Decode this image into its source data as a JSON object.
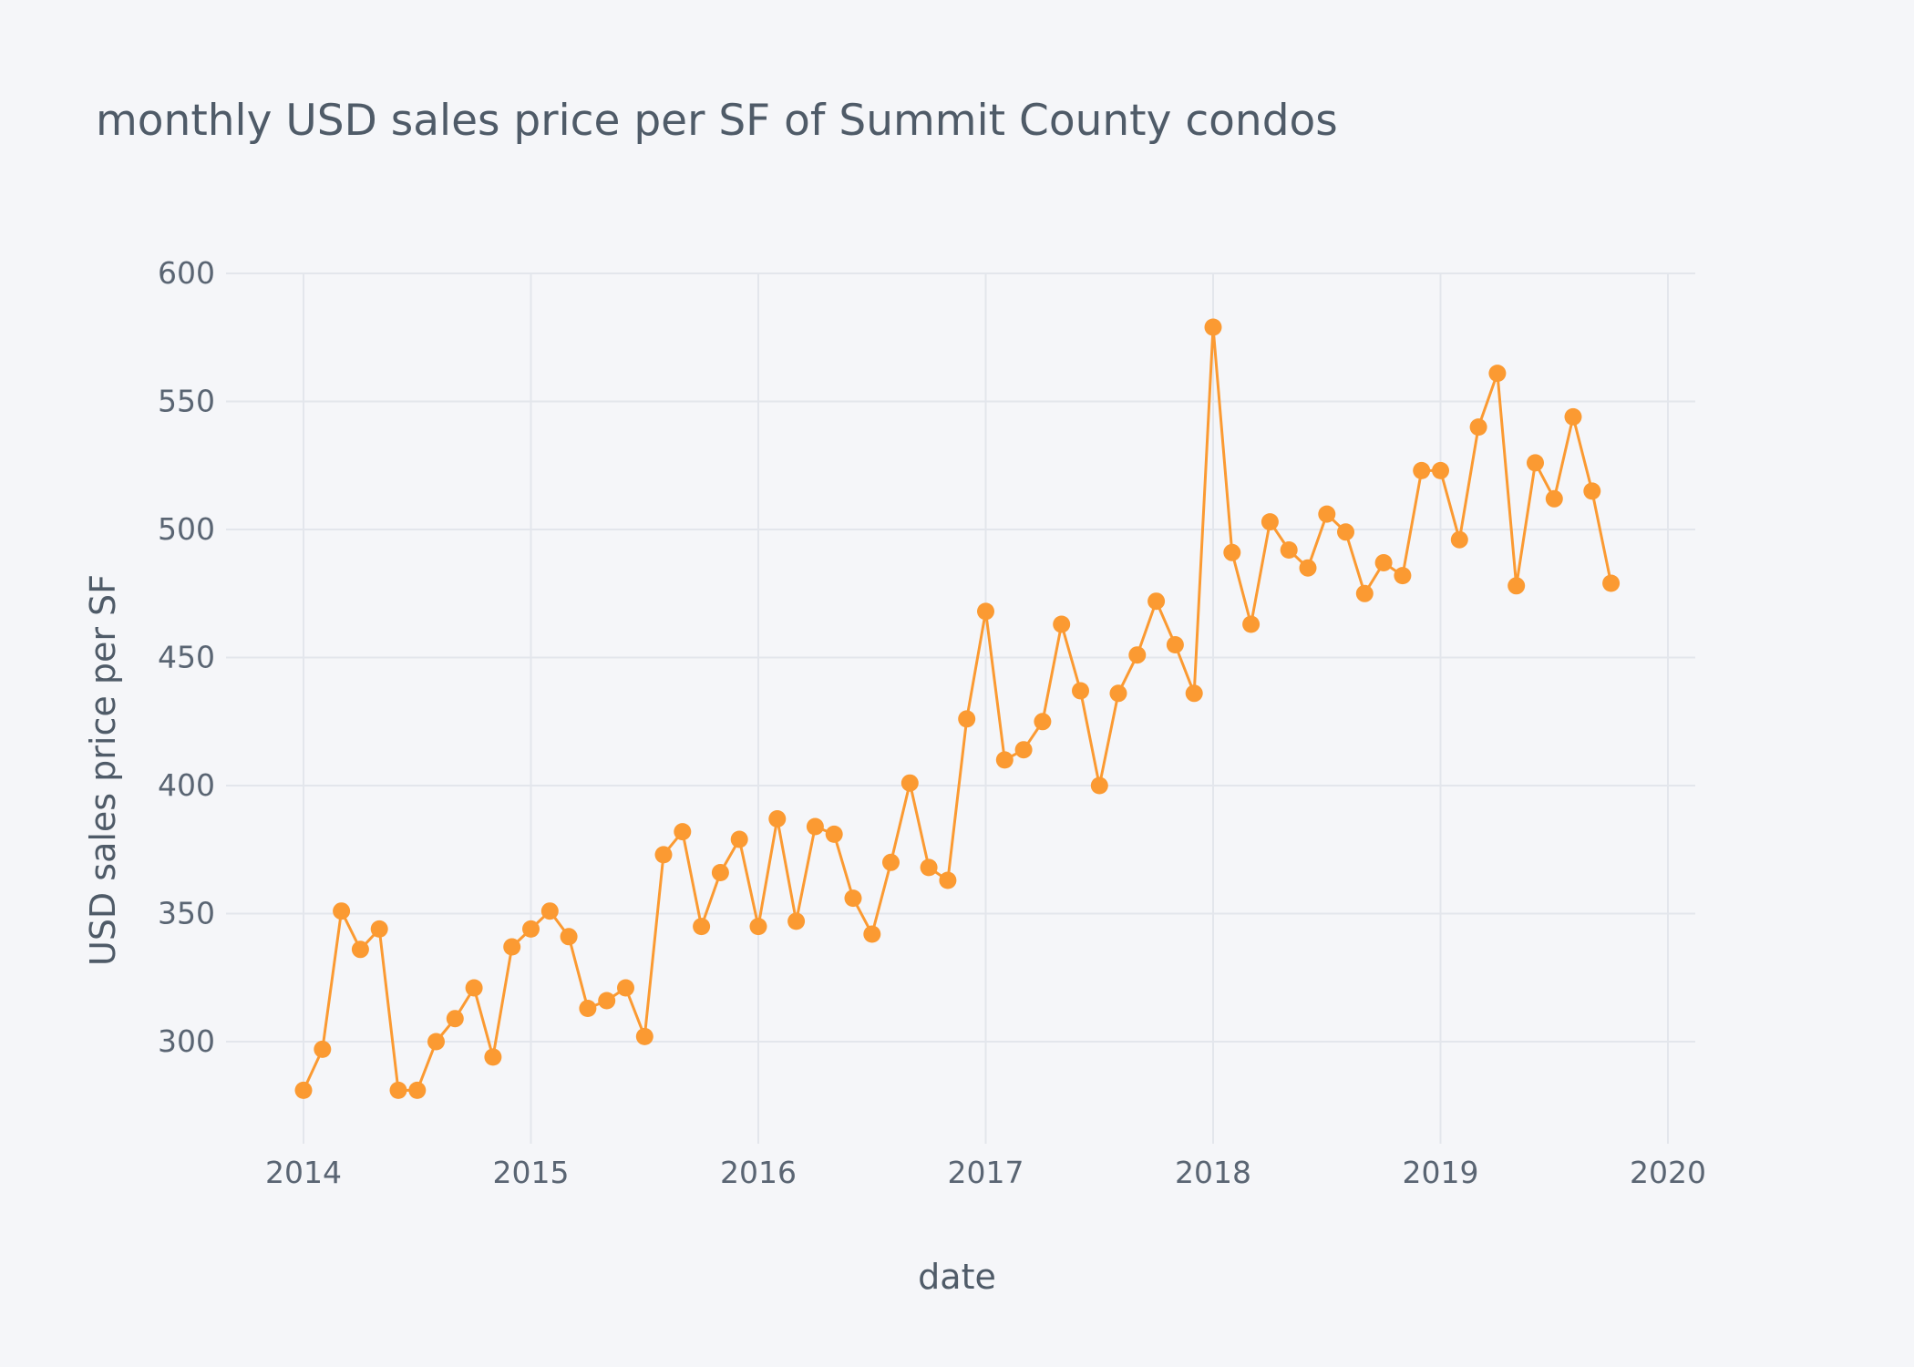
{
  "chart_data": {
    "type": "line",
    "title": "monthly USD sales price per SF of Summit County condos",
    "xlabel": "date",
    "ylabel": "USD sales price per SF",
    "x_ticks": [
      "2014",
      "2015",
      "2016",
      "2017",
      "2018",
      "2019",
      "2020"
    ],
    "y_ticks": [
      "300",
      "350",
      "400",
      "450",
      "500",
      "550",
      "600"
    ],
    "ylim": [
      260,
      600
    ],
    "xlim": [
      "2013-09",
      "2020-03"
    ],
    "grid": true,
    "colors": {
      "series": "#fb9a32",
      "background": "#f5f6f9",
      "grid": "#e3e6ec"
    },
    "series": [
      {
        "x": [
          "2014-01",
          "2014-02",
          "2014-03",
          "2014-04",
          "2014-05",
          "2014-06",
          "2014-07",
          "2014-08",
          "2014-09",
          "2014-10",
          "2014-11",
          "2014-12",
          "2015-01",
          "2015-02",
          "2015-03",
          "2015-04",
          "2015-05",
          "2015-06",
          "2015-07",
          "2015-08",
          "2015-09",
          "2015-10",
          "2015-11",
          "2015-12",
          "2016-01",
          "2016-02",
          "2016-03",
          "2016-04",
          "2016-05",
          "2016-06",
          "2016-07",
          "2016-08",
          "2016-09",
          "2016-10",
          "2016-11",
          "2016-12",
          "2017-01",
          "2017-02",
          "2017-03",
          "2017-04",
          "2017-05",
          "2017-06",
          "2017-07",
          "2017-08",
          "2017-09",
          "2017-10",
          "2017-11",
          "2017-12",
          "2018-01",
          "2018-02",
          "2018-03",
          "2018-04",
          "2018-05",
          "2018-06",
          "2018-07",
          "2018-08",
          "2018-09",
          "2018-10",
          "2018-11",
          "2018-12",
          "2019-01",
          "2019-02",
          "2019-03",
          "2019-04",
          "2019-05",
          "2019-06",
          "2019-07",
          "2019-08",
          "2019-09",
          "2019-10"
        ],
        "values": [
          281,
          297,
          351,
          336,
          344,
          281,
          281,
          300,
          309,
          321,
          294,
          337,
          344,
          351,
          341,
          313,
          316,
          321,
          302,
          373,
          382,
          345,
          366,
          379,
          345,
          387,
          347,
          384,
          381,
          356,
          342,
          370,
          401,
          368,
          363,
          426,
          468,
          410,
          414,
          425,
          463,
          437,
          400,
          436,
          451,
          472,
          455,
          436,
          579,
          491,
          463,
          503,
          492,
          485,
          506,
          499,
          475,
          487,
          482,
          523,
          523,
          496,
          540,
          561,
          478,
          526,
          512,
          544,
          515,
          479
        ]
      }
    ]
  }
}
